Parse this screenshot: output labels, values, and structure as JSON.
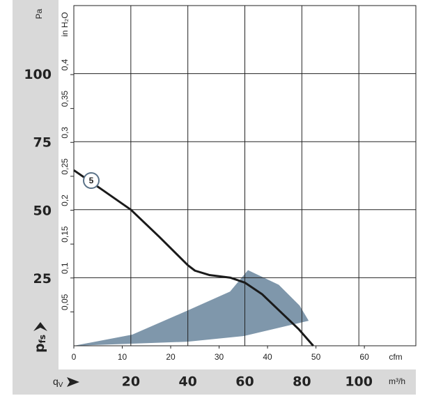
{
  "chart_data": {
    "type": "line",
    "y_label": {
      "main": "p",
      "sub": "fs"
    },
    "y_unit": "Pa",
    "y2_unit": "in H₂O",
    "x_label": {
      "main": "q",
      "sub": "V"
    },
    "x_unit": "m³/h",
    "x2_unit": "cfm",
    "xlim": [
      0,
      120
    ],
    "xticks": [
      20,
      40,
      60,
      80,
      100
    ],
    "x2lim": [
      0,
      70.63
    ],
    "x2ticks": [
      0,
      10,
      20,
      30,
      40,
      50,
      60
    ],
    "ylim": [
      0,
      125
    ],
    "yticks": [
      25,
      50,
      75,
      100
    ],
    "y2lim": [
      0,
      0.5018
    ],
    "y2ticks": [
      {
        "value": 0.05,
        "label": "0,05"
      },
      {
        "value": 0.1,
        "label": "0,1"
      },
      {
        "value": 0.15,
        "label": "0,15"
      },
      {
        "value": 0.2,
        "label": "0,2"
      },
      {
        "value": 0.25,
        "label": "0,25"
      },
      {
        "value": 0.3,
        "label": "0,3"
      },
      {
        "value": 0.35,
        "label": "0,35"
      },
      {
        "value": 0.4,
        "label": "0,4"
      }
    ],
    "grid": true,
    "series": [
      {
        "name": "5",
        "color": "#1a1a1a",
        "x": [
          0,
          10,
          20,
          30,
          40,
          42.5,
          47.5,
          55,
          60,
          66,
          73,
          79,
          84
        ],
        "values": [
          64.5,
          57.3,
          50,
          40,
          29.6,
          27.6,
          26,
          25,
          23.2,
          19,
          12,
          6,
          0
        ]
      }
    ],
    "region": {
      "color": "#7f97ab",
      "x": [
        0,
        20.5,
        40,
        54.8,
        61.1,
        71.9,
        79.2,
        82.4,
        59.7,
        40,
        0
      ],
      "values": [
        0,
        4.1,
        13,
        19.9,
        27.8,
        22.4,
        14.8,
        9.2,
        3.6,
        1.5,
        0
      ]
    }
  }
}
